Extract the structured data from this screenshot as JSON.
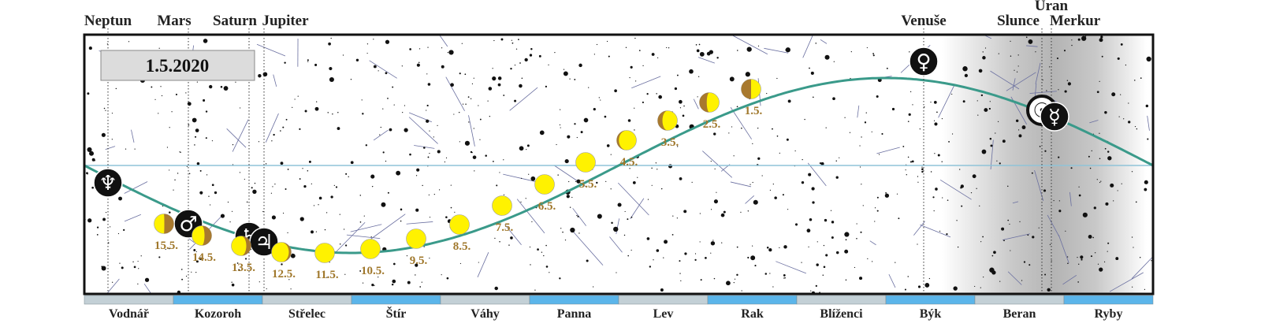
{
  "date": "1.5.2020",
  "planets": [
    {
      "label": "Neptun",
      "symbol": "♆"
    },
    {
      "label": "Mars",
      "symbol": "♂"
    },
    {
      "label": "Saturn",
      "symbol": "♄"
    },
    {
      "label": "Jupiter",
      "symbol": "♃"
    },
    {
      "label": "Venuše",
      "symbol": "♀"
    },
    {
      "label": "Slunce",
      "symbol": "☉"
    },
    {
      "label": "Uran",
      "symbol": ""
    },
    {
      "label": "Merkur",
      "symbol": "☿"
    }
  ],
  "moon_dates": [
    "1.5.",
    "2.5.",
    "3.5.",
    "4.5.",
    "5.5.",
    "6.5.",
    "7.5.",
    "8.5.",
    "9.5.",
    "10.5.",
    "11.5.",
    "12.5.",
    "13.5.",
    "14.5.",
    "15.5."
  ],
  "constellations": [
    "Vodnář",
    "Kozoroh",
    "Střelec",
    "Štír",
    "Váhy",
    "Panna",
    "Lev",
    "Rak",
    "Blíženci",
    "Býk",
    "Beran",
    "Ryby"
  ]
}
